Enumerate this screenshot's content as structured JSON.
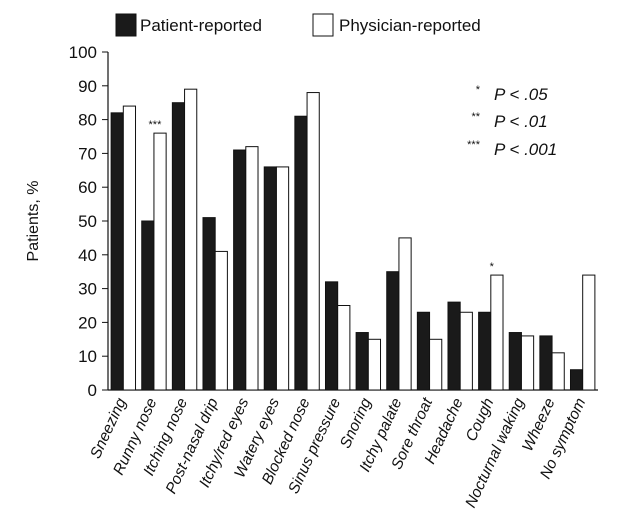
{
  "chart_data": {
    "type": "bar",
    "ylabel": "Patients, %",
    "ylim": [
      0,
      100
    ],
    "yticks": [
      0,
      10,
      20,
      30,
      40,
      50,
      60,
      70,
      80,
      90,
      100
    ],
    "grid": false,
    "legend_position": "top",
    "categories": [
      "Sneezing",
      "Runny nose",
      "Itching nose",
      "Post-nasal drip",
      "Itchy/red eyes",
      "Watery eyes",
      "Blocked nose",
      "Sinus pressure",
      "Snoring",
      "Itchy palate",
      "Sore throat",
      "Headache",
      "Cough",
      "Nocturnal waking",
      "Wheeze",
      "No symptom"
    ],
    "series": [
      {
        "name": "Patient-reported",
        "color": "#1a1a1a",
        "values": [
          82,
          50,
          85,
          51,
          71,
          66,
          81,
          32,
          17,
          35,
          23,
          26,
          23,
          17,
          16,
          6
        ]
      },
      {
        "name": "Physician-reported",
        "color": "#ffffff",
        "values": [
          84,
          76,
          89,
          41,
          72,
          66,
          88,
          25,
          15,
          45,
          15,
          23,
          34,
          16,
          11,
          34
        ]
      }
    ],
    "bar_annotations": [
      {
        "category": "Runny nose",
        "text": "***"
      },
      {
        "category": "Cough",
        "text": "*"
      }
    ],
    "significance_key": [
      {
        "marker": "*",
        "label": "P < .05"
      },
      {
        "marker": "**",
        "label": "P < .01"
      },
      {
        "marker": "***",
        "label": "P < .001"
      }
    ]
  }
}
